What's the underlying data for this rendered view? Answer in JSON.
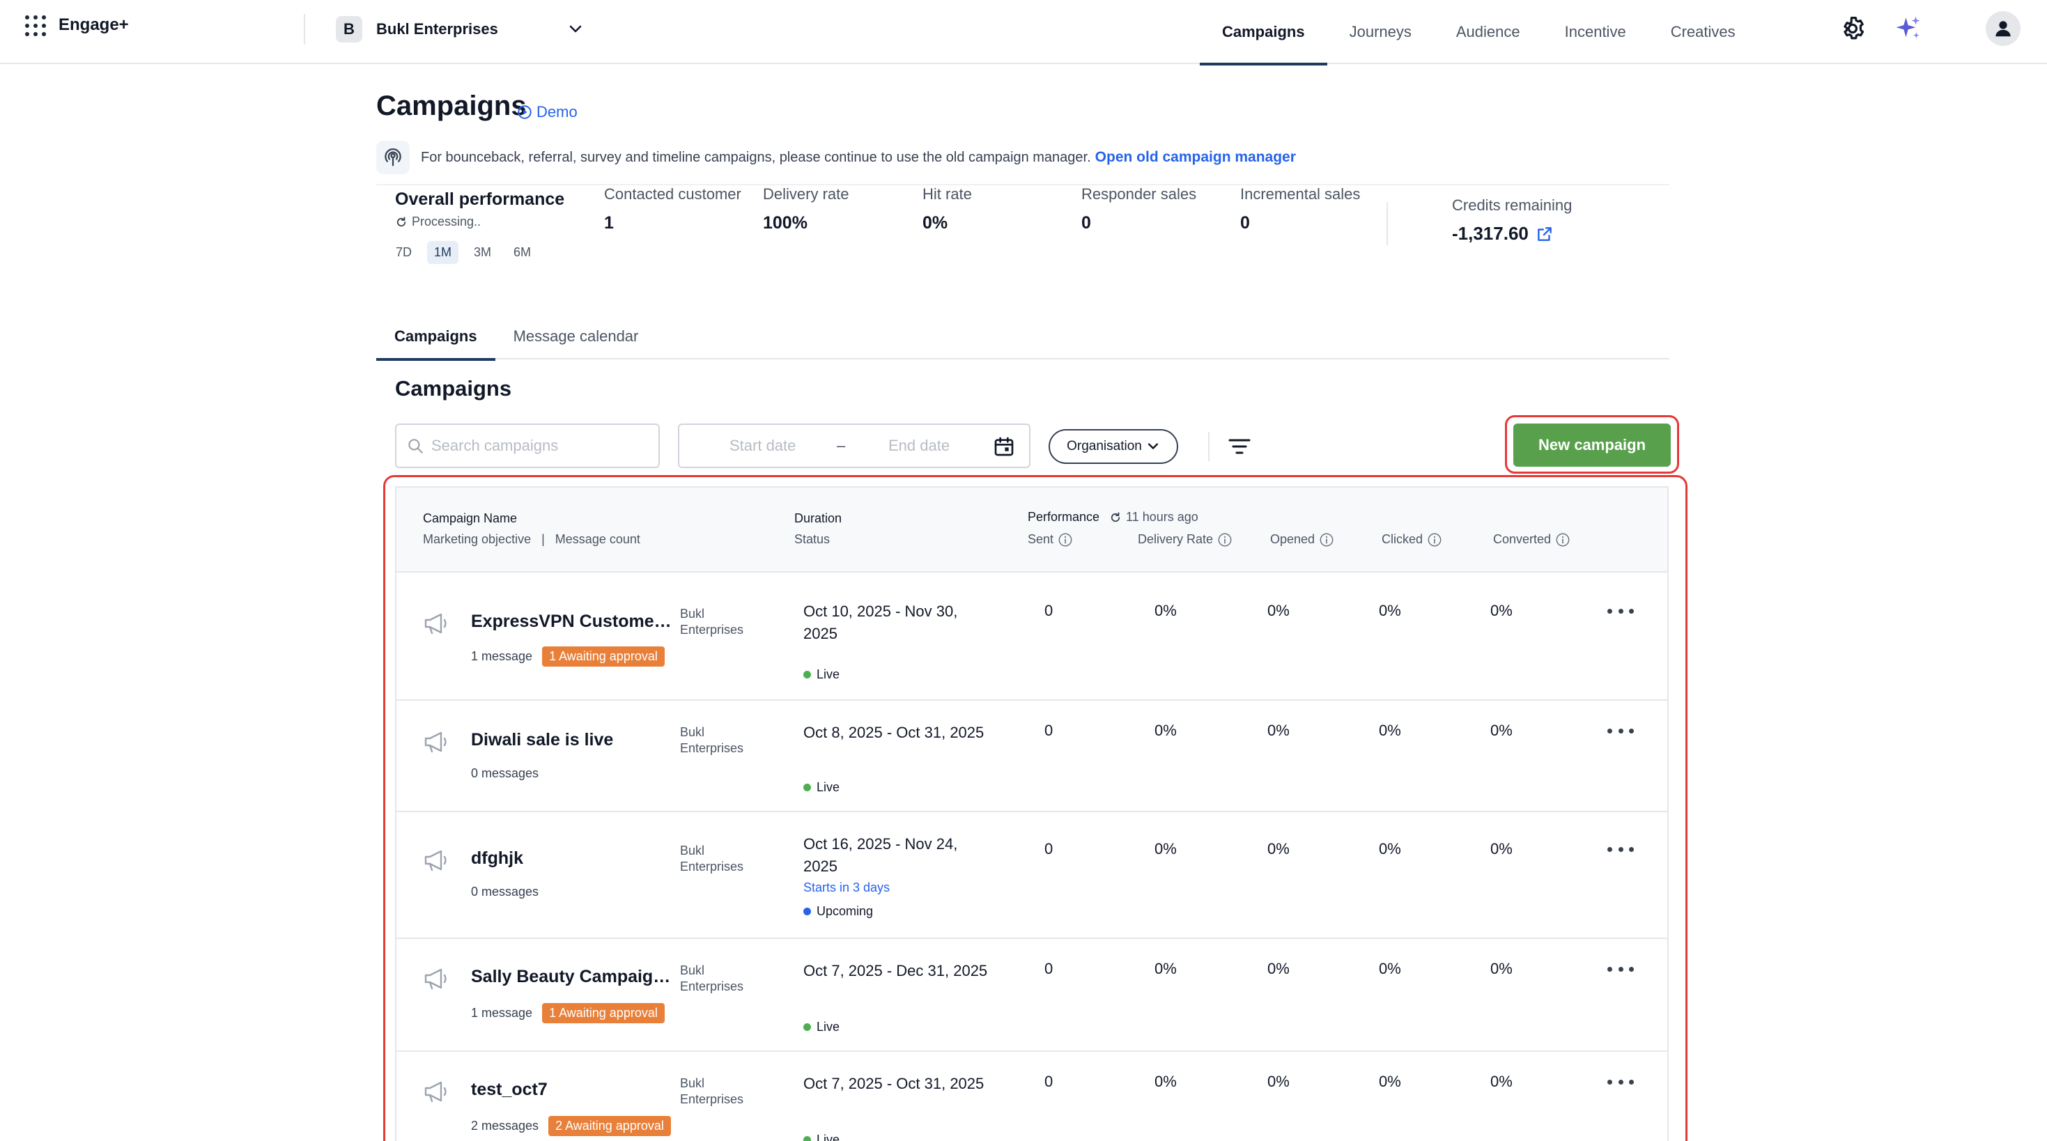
{
  "app": {
    "name": "Engage+"
  },
  "org": {
    "initial": "B",
    "name": "Bukl Enterprises"
  },
  "nav": {
    "items": [
      "Campaigns",
      "Journeys",
      "Audience",
      "Incentive",
      "Creatives"
    ],
    "active": "Campaigns"
  },
  "page": {
    "title": "Campaigns",
    "demo_label": "Demo"
  },
  "banner": {
    "text": "For bounceback, referral, survey and timeline campaigns, please continue to use the old campaign manager.",
    "link": "Open old campaign manager"
  },
  "performance": {
    "title": "Overall performance",
    "status": "Processing..",
    "periods": [
      "7D",
      "1M",
      "3M",
      "6M"
    ],
    "active_period": "1M",
    "metrics": [
      {
        "label": "Contacted customer",
        "value": "1"
      },
      {
        "label": "Delivery rate",
        "value": "100%"
      },
      {
        "label": "Hit rate",
        "value": "0%"
      },
      {
        "label": "Responder sales",
        "value": "0"
      },
      {
        "label": "Incremental sales",
        "value": "0"
      }
    ],
    "credits_label": "Credits remaining",
    "credits_value": "-1,317.60"
  },
  "tabs": [
    "Campaigns",
    "Message calendar"
  ],
  "section_title": "Campaigns",
  "toolbar": {
    "search_placeholder": "Search campaigns",
    "start_date_placeholder": "Start date",
    "date_separator": "–",
    "end_date_placeholder": "End date",
    "org_filter_label": "Organisation",
    "new_campaign_label": "New campaign"
  },
  "table": {
    "headers": {
      "name": "Campaign Name",
      "name_sub": "Marketing objective",
      "name_sub_sep": "|",
      "name_sub2": "Message count",
      "duration": "Duration",
      "status": "Status",
      "performance": "Performance",
      "updated": "11 hours ago",
      "sent": "Sent",
      "delivery_rate": "Delivery Rate",
      "opened": "Opened",
      "clicked": "Clicked",
      "converted": "Converted"
    },
    "rows": [
      {
        "name": "ExpressVPN Customer ...",
        "messages": "1 message",
        "badge": "1 Awaiting approval",
        "org": "Bukl Enterprises",
        "duration": "Oct 10, 2025 - Nov 30, 2025",
        "starts": "",
        "status": "Live",
        "status_type": "live",
        "sent": "0",
        "delivery": "0%",
        "opened": "0%",
        "clicked": "0%",
        "converted": "0%"
      },
      {
        "name": "Diwali sale is live",
        "messages": "0 messages",
        "badge": "",
        "org": "Bukl Enterprises",
        "duration": "Oct 8, 2025 - Oct 31, 2025",
        "starts": "",
        "status": "Live",
        "status_type": "live",
        "sent": "0",
        "delivery": "0%",
        "opened": "0%",
        "clicked": "0%",
        "converted": "0%"
      },
      {
        "name": "dfghjk",
        "messages": "0 messages",
        "badge": "",
        "org": "Bukl Enterprises",
        "duration": "Oct 16, 2025 - Nov 24, 2025",
        "starts": "Starts in 3 days",
        "status": "Upcoming",
        "status_type": "upcoming",
        "sent": "0",
        "delivery": "0%",
        "opened": "0%",
        "clicked": "0%",
        "converted": "0%"
      },
      {
        "name": "Sally Beauty Campaigns",
        "messages": "1 message",
        "badge": "1 Awaiting approval",
        "org": "Bukl Enterprises",
        "duration": "Oct 7, 2025 - Dec 31, 2025",
        "starts": "",
        "status": "Live",
        "status_type": "live",
        "sent": "0",
        "delivery": "0%",
        "opened": "0%",
        "clicked": "0%",
        "converted": "0%"
      },
      {
        "name": "test_oct7",
        "messages": "2 messages",
        "badge": "2 Awaiting approval",
        "org": "Bukl Enterprises",
        "duration": "Oct 7, 2025 - Oct 31, 2025",
        "starts": "",
        "status": "Live",
        "status_type": "live",
        "sent": "0",
        "delivery": "0%",
        "opened": "0%",
        "clicked": "0%",
        "converted": "0%"
      }
    ]
  },
  "colors": {
    "primary_button": "#58a04b",
    "link": "#2563eb",
    "badge": "#e8803a",
    "highlight": "#e53935",
    "live": "#4caf50"
  },
  "icons": {
    "apps": "apps-grid-icon",
    "gear": "gear-icon",
    "sparkle": "sparkle-icon",
    "user": "user-icon",
    "megaphone": "megaphone-icon"
  }
}
